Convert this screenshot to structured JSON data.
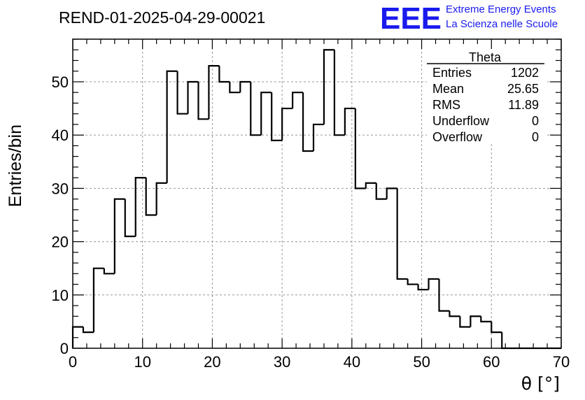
{
  "chart_data": {
    "type": "bar",
    "title": "REND-01-2025-04-29-00021",
    "xlabel": "θ [°]",
    "ylabel": "Entries/bin",
    "xlim": [
      0,
      70
    ],
    "ylim": [
      0,
      58
    ],
    "grid": true,
    "x_ticks": [
      0,
      10,
      20,
      30,
      40,
      50,
      60,
      70
    ],
    "y_ticks": [
      0,
      10,
      20,
      30,
      40,
      50
    ],
    "bin_width": 1.5,
    "values": [
      4,
      3,
      15,
      14,
      28,
      21,
      32,
      25,
      31,
      52,
      44,
      50,
      43,
      53,
      50,
      48,
      50,
      40,
      48,
      39,
      45,
      48,
      37,
      42,
      56,
      40,
      45,
      30,
      31,
      28,
      30,
      13,
      12,
      11,
      13,
      7,
      6,
      4,
      6,
      5,
      3,
      0,
      0,
      0,
      0,
      0,
      0
    ],
    "stats_box": {
      "title": "Theta",
      "rows": [
        {
          "label": "Entries",
          "value": "1202"
        },
        {
          "label": "Mean",
          "value": "25.65"
        },
        {
          "label": "RMS",
          "value": "11.89"
        },
        {
          "label": "Underflow",
          "value": "0"
        },
        {
          "label": "Overflow",
          "value": "0"
        }
      ]
    },
    "line_color": "#000000",
    "grid_color": "#999999"
  },
  "logo": {
    "mark": "EEE",
    "line1": "Extreme Energy Events",
    "line2": "La Scienza nelle Scuole",
    "color": "#1a1aee"
  }
}
